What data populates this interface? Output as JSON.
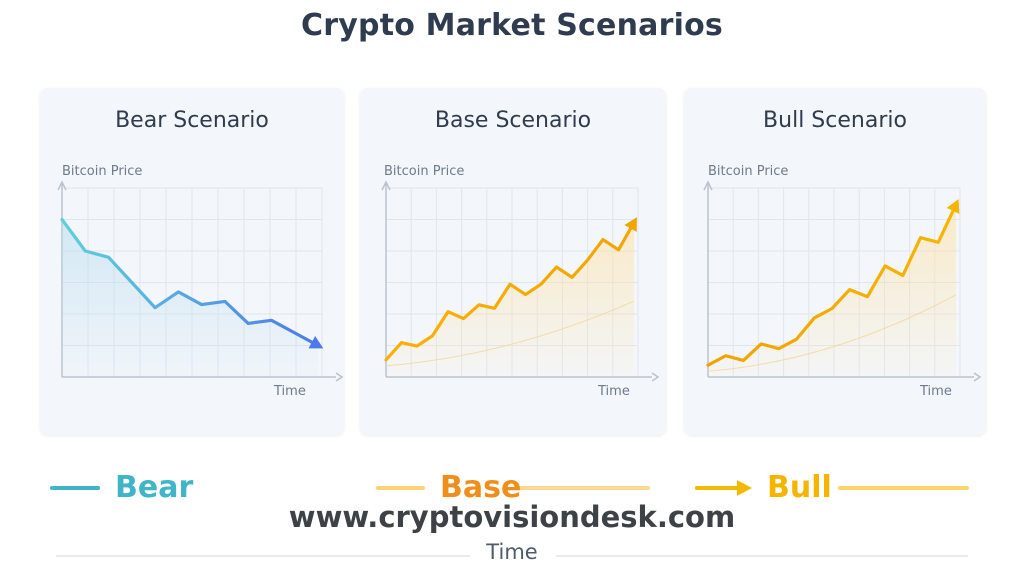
{
  "title": "Crypto Market Scenarios",
  "chart_data": [
    {
      "type": "line",
      "title": "Bear Scenario",
      "ylabel": "Bitcoin Price",
      "xlabel": "Time",
      "series": [
        {
          "values": [
            100,
            90,
            88,
            80,
            72,
            77,
            73,
            74,
            67,
            68,
            64,
            60
          ],
          "color": "#5fd0dc"
        }
      ],
      "ylim": [
        50,
        110
      ],
      "gradient_end": "#4d7ae8",
      "grid": true,
      "trend": "down"
    },
    {
      "type": "line",
      "title": "Base Scenario",
      "ylabel": "Bitcoin Price",
      "xlabel": "Time",
      "series": [
        {
          "values": [
            50,
            55,
            54,
            57,
            64,
            62,
            66,
            65,
            72,
            69,
            72,
            77,
            74,
            79,
            85,
            82,
            90
          ]
        }
      ],
      "ylim": [
        45,
        100
      ],
      "color_start": "#ffb000",
      "color_end": "#f0a500",
      "grid": true,
      "trend": "up"
    },
    {
      "type": "line",
      "title": "Bull Scenario",
      "ylabel": "Bitcoin Price",
      "xlabel": "Time",
      "series": [
        {
          "values": [
            50,
            54,
            52,
            59,
            57,
            61,
            70,
            74,
            82,
            79,
            92,
            88,
            104,
            102,
            118
          ]
        }
      ],
      "ylim": [
        45,
        125
      ],
      "color_start": "#f2a200",
      "color_end": "#f7b500",
      "grid": true,
      "trend": "up"
    }
  ],
  "legend": {
    "bear": {
      "label": "Bear",
      "color": "#3fb5c7",
      "line_start": "#6fd7e4",
      "line_end": "#7f73d6"
    },
    "base": {
      "label": "Base",
      "color": "#f08e1c",
      "line_start": "#ffd275",
      "line_end": "#ffd98f"
    },
    "bull": {
      "label": "Bull",
      "color": "#f4b400",
      "line_start": "#ffd56a",
      "line_end": "#ffd56a"
    }
  },
  "footer": {
    "url": "www.cryptovisiondesk.com",
    "axis": "Time"
  }
}
